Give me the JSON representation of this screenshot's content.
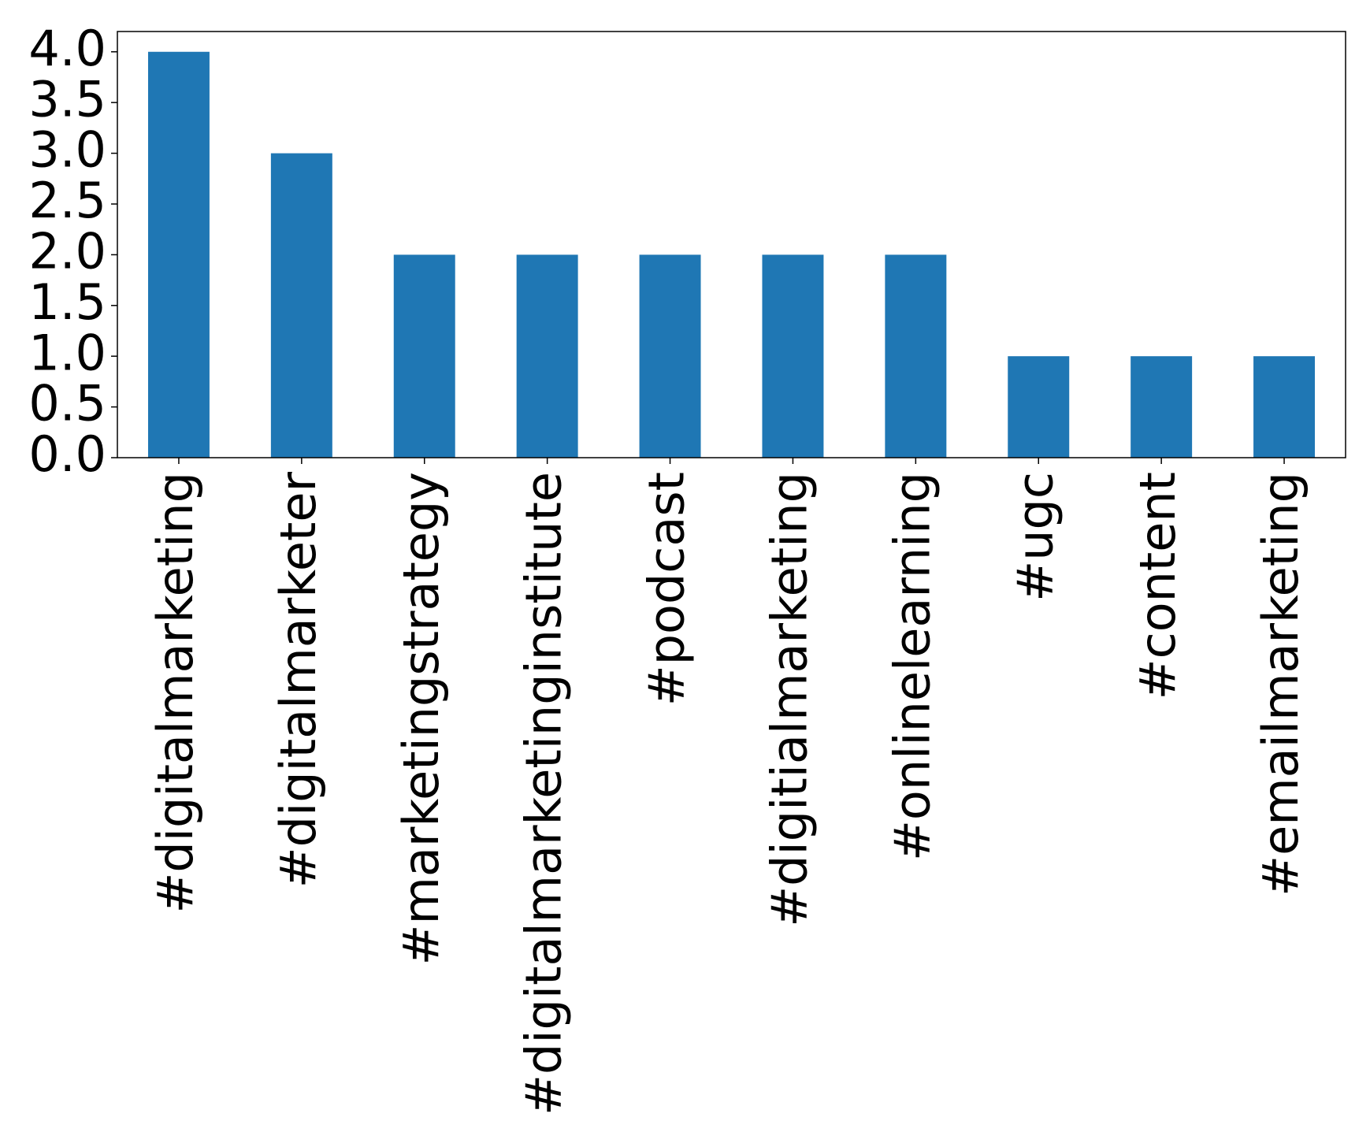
{
  "chart_data": {
    "type": "bar",
    "categories": [
      "#digitalmarketing",
      "#digitalmarketer",
      "#marketingstrategy",
      "#digitalmarketinginstitute",
      "#podcast",
      "#digitialmarketing",
      "#onlinelearning",
      "#ugc",
      "#content",
      "#emailmarketing"
    ],
    "values": [
      4,
      3,
      2,
      2,
      2,
      2,
      2,
      1,
      1,
      1
    ],
    "color": "#1f77b4",
    "ylim": [
      0,
      4.2
    ],
    "yticks": [
      {
        "value": 0,
        "label": "0.0"
      },
      0.5,
      {
        "value": 1,
        "label": "1.0"
      },
      1.5,
      {
        "value": 2,
        "label": "2.0"
      },
      2.5,
      {
        "value": 3,
        "label": "3.0"
      },
      3.5,
      {
        "value": 4,
        "label": "4.0"
      }
    ],
    "grid": false
  }
}
